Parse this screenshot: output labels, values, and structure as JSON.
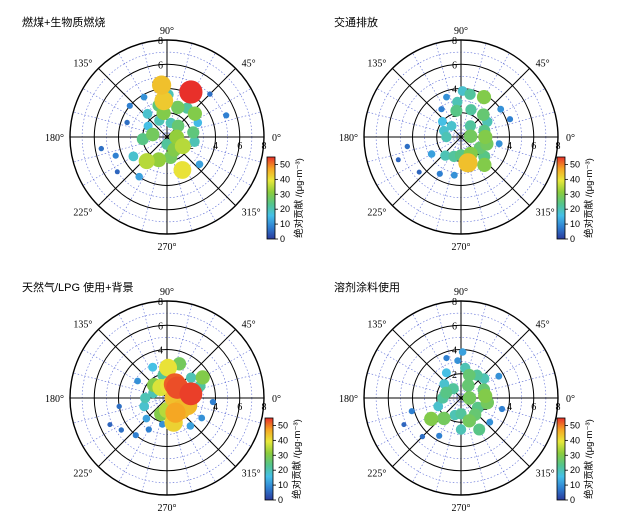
{
  "colorscale": {
    "min": 0,
    "max": 55,
    "ticks": [
      0,
      10,
      20,
      30,
      40,
      50
    ],
    "stops": [
      "#2b3a9c",
      "#2f7fd1",
      "#45c0e8",
      "#55c58a",
      "#8ccc3c",
      "#e8e83a",
      "#f5a623",
      "#e8302a"
    ],
    "label": "绝对贡献 /(μg·m⁻³)"
  },
  "polar": {
    "radial_ticks": [
      "2",
      "4",
      "6",
      "8"
    ],
    "angle_labels": [
      "0°",
      "45°",
      "90°",
      "135°",
      "180°",
      "225°",
      "270°",
      "315°"
    ],
    "r_max": 8
  },
  "chart_data": [
    {
      "type": "scatter",
      "title": "燃煤+生物质燃烧",
      "points": [
        {
          "theta": 62,
          "r": 4.2,
          "v": 55
        },
        {
          "theta": 96,
          "r": 4.3,
          "v": 44
        },
        {
          "theta": 95,
          "r": 3.0,
          "v": 43
        },
        {
          "theta": 98,
          "r": 2.0,
          "v": 30
        },
        {
          "theta": 88,
          "r": 3.5,
          "v": 20
        },
        {
          "theta": 105,
          "r": 2.7,
          "v": 25
        },
        {
          "theta": 70,
          "r": 2.6,
          "v": 28
        },
        {
          "theta": 55,
          "r": 2.9,
          "v": 22
        },
        {
          "theta": 40,
          "r": 3.0,
          "v": 30
        },
        {
          "theta": 25,
          "r": 2.8,
          "v": 15
        },
        {
          "theta": 10,
          "r": 2.2,
          "v": 25
        },
        {
          "theta": 350,
          "r": 2.3,
          "v": 20
        },
        {
          "theta": 330,
          "r": 1.5,
          "v": 35
        },
        {
          "theta": 300,
          "r": 1.2,
          "v": 30
        },
        {
          "theta": 280,
          "r": 1.7,
          "v": 28
        },
        {
          "theta": 250,
          "r": 2.0,
          "v": 32
        },
        {
          "theta": 230,
          "r": 2.6,
          "v": 35
        },
        {
          "theta": 210,
          "r": 3.2,
          "v": 18
        },
        {
          "theta": 200,
          "r": 4.5,
          "v": 8
        },
        {
          "theta": 190,
          "r": 5.5,
          "v": 6
        },
        {
          "theta": 185,
          "r": 2.0,
          "v": 24
        },
        {
          "theta": 170,
          "r": 1.2,
          "v": 28
        },
        {
          "theta": 150,
          "r": 1.8,
          "v": 16
        },
        {
          "theta": 130,
          "r": 2.5,
          "v": 18
        },
        {
          "theta": 140,
          "r": 4.0,
          "v": 8
        },
        {
          "theta": 120,
          "r": 3.8,
          "v": 10
        },
        {
          "theta": 160,
          "r": 3.5,
          "v": 6
        },
        {
          "theta": 20,
          "r": 5.2,
          "v": 8
        },
        {
          "theta": 45,
          "r": 5.0,
          "v": 6
        },
        {
          "theta": 320,
          "r": 3.5,
          "v": 12
        },
        {
          "theta": 295,
          "r": 3.0,
          "v": 40
        },
        {
          "theta": 235,
          "r": 4.0,
          "v": 12
        },
        {
          "theta": 215,
          "r": 5.0,
          "v": 5
        },
        {
          "theta": 75,
          "r": 1.2,
          "v": 20
        },
        {
          "theta": 0,
          "r": 0.8,
          "v": 32
        },
        {
          "theta": 270,
          "r": 0.6,
          "v": 22
        },
        {
          "theta": 45,
          "r": 1.3,
          "v": 26
        },
        {
          "theta": 115,
          "r": 1.5,
          "v": 20
        }
      ]
    },
    {
      "type": "scatter",
      "title": "交通排放",
      "points": [
        {
          "theta": 60,
          "r": 3.8,
          "v": 30
        },
        {
          "theta": 78,
          "r": 3.6,
          "v": 22
        },
        {
          "theta": 88,
          "r": 3.8,
          "v": 18
        },
        {
          "theta": 96,
          "r": 2.9,
          "v": 20
        },
        {
          "theta": 100,
          "r": 2.2,
          "v": 24
        },
        {
          "theta": 70,
          "r": 2.4,
          "v": 22
        },
        {
          "theta": 45,
          "r": 2.6,
          "v": 26
        },
        {
          "theta": 30,
          "r": 2.5,
          "v": 20
        },
        {
          "theta": 15,
          "r": 2.0,
          "v": 24
        },
        {
          "theta": 0,
          "r": 2.0,
          "v": 30
        },
        {
          "theta": 345,
          "r": 2.2,
          "v": 28
        },
        {
          "theta": 330,
          "r": 1.8,
          "v": 26
        },
        {
          "theta": 300,
          "r": 1.6,
          "v": 30
        },
        {
          "theta": 285,
          "r": 2.2,
          "v": 44
        },
        {
          "theta": 270,
          "r": 1.5,
          "v": 24
        },
        {
          "theta": 250,
          "r": 1.7,
          "v": 22
        },
        {
          "theta": 230,
          "r": 2.0,
          "v": 20
        },
        {
          "theta": 210,
          "r": 2.8,
          "v": 12
        },
        {
          "theta": 190,
          "r": 4.5,
          "v": 6
        },
        {
          "theta": 180,
          "r": 1.2,
          "v": 20
        },
        {
          "theta": 160,
          "r": 1.5,
          "v": 18
        },
        {
          "theta": 140,
          "r": 2.0,
          "v": 16
        },
        {
          "theta": 125,
          "r": 2.8,
          "v": 8
        },
        {
          "theta": 110,
          "r": 3.5,
          "v": 10
        },
        {
          "theta": 20,
          "r": 4.3,
          "v": 8
        },
        {
          "theta": 35,
          "r": 4.0,
          "v": 10
        },
        {
          "theta": 310,
          "r": 3.0,
          "v": 30
        },
        {
          "theta": 320,
          "r": 2.5,
          "v": 24
        },
        {
          "theta": 240,
          "r": 3.5,
          "v": 8
        },
        {
          "theta": 220,
          "r": 4.5,
          "v": 5
        },
        {
          "theta": 200,
          "r": 5.5,
          "v": 5
        },
        {
          "theta": 260,
          "r": 3.2,
          "v": 10
        },
        {
          "theta": 50,
          "r": 1.2,
          "v": 22
        },
        {
          "theta": 130,
          "r": 1.2,
          "v": 18
        },
        {
          "theta": 5,
          "r": 0.8,
          "v": 28
        },
        {
          "theta": 350,
          "r": 3.2,
          "v": 10
        }
      ]
    },
    {
      "type": "scatter",
      "title": "天然气/LPG 使用+背景",
      "points": [
        {
          "theta": 10,
          "r": 2.0,
          "v": 54
        },
        {
          "theta": 340,
          "r": 1.8,
          "v": 45
        },
        {
          "theta": 320,
          "r": 1.5,
          "v": 45
        },
        {
          "theta": 300,
          "r": 1.4,
          "v": 47
        },
        {
          "theta": 285,
          "r": 2.1,
          "v": 42
        },
        {
          "theta": 45,
          "r": 1.2,
          "v": 53
        },
        {
          "theta": 60,
          "r": 1.3,
          "v": 52
        },
        {
          "theta": 88,
          "r": 2.5,
          "v": 40
        },
        {
          "theta": 100,
          "r": 1.9,
          "v": 22
        },
        {
          "theta": 135,
          "r": 1.5,
          "v": 30
        },
        {
          "theta": 160,
          "r": 1.2,
          "v": 20
        },
        {
          "theta": 180,
          "r": 1.8,
          "v": 20
        },
        {
          "theta": 200,
          "r": 2.0,
          "v": 18
        },
        {
          "theta": 225,
          "r": 2.4,
          "v": 12
        },
        {
          "theta": 240,
          "r": 3.0,
          "v": 8
        },
        {
          "theta": 260,
          "r": 2.2,
          "v": 10
        },
        {
          "theta": 20,
          "r": 2.9,
          "v": 22
        },
        {
          "theta": 30,
          "r": 3.4,
          "v": 30
        },
        {
          "theta": 40,
          "r": 2.6,
          "v": 20
        },
        {
          "theta": 70,
          "r": 3.0,
          "v": 28
        },
        {
          "theta": 115,
          "r": 2.8,
          "v": 16
        },
        {
          "theta": 150,
          "r": 2.8,
          "v": 10
        },
        {
          "theta": 190,
          "r": 4.0,
          "v": 6
        },
        {
          "theta": 205,
          "r": 5.2,
          "v": 5
        },
        {
          "theta": 215,
          "r": 4.6,
          "v": 6
        },
        {
          "theta": 230,
          "r": 4.0,
          "v": 8
        },
        {
          "theta": 355,
          "r": 3.8,
          "v": 8
        },
        {
          "theta": 330,
          "r": 3.3,
          "v": 10
        },
        {
          "theta": 310,
          "r": 3.0,
          "v": 12
        },
        {
          "theta": 270,
          "r": 1.0,
          "v": 35
        },
        {
          "theta": 0,
          "r": 0.6,
          "v": 44
        },
        {
          "theta": 80,
          "r": 1.0,
          "v": 40
        },
        {
          "theta": 120,
          "r": 1.0,
          "v": 38
        },
        {
          "theta": 250,
          "r": 1.4,
          "v": 30
        }
      ]
    },
    {
      "type": "scatter",
      "title": "溶剂涂料使用",
      "points": [
        {
          "theta": 88,
          "r": 3.8,
          "v": 12
        },
        {
          "theta": 95,
          "r": 3.1,
          "v": 10
        },
        {
          "theta": 82,
          "r": 2.5,
          "v": 20
        },
        {
          "theta": 70,
          "r": 2.0,
          "v": 26
        },
        {
          "theta": 55,
          "r": 2.3,
          "v": 22
        },
        {
          "theta": 40,
          "r": 2.5,
          "v": 20
        },
        {
          "theta": 20,
          "r": 2.0,
          "v": 26
        },
        {
          "theta": 5,
          "r": 2.0,
          "v": 30
        },
        {
          "theta": 350,
          "r": 2.2,
          "v": 28
        },
        {
          "theta": 330,
          "r": 1.6,
          "v": 24
        },
        {
          "theta": 310,
          "r": 1.8,
          "v": 26
        },
        {
          "theta": 290,
          "r": 2.0,
          "v": 28
        },
        {
          "theta": 270,
          "r": 1.3,
          "v": 22
        },
        {
          "theta": 250,
          "r": 1.5,
          "v": 20
        },
        {
          "theta": 230,
          "r": 2.2,
          "v": 28
        },
        {
          "theta": 215,
          "r": 3.0,
          "v": 30
        },
        {
          "theta": 200,
          "r": 2.0,
          "v": 18
        },
        {
          "theta": 180,
          "r": 1.5,
          "v": 22
        },
        {
          "theta": 160,
          "r": 1.3,
          "v": 24
        },
        {
          "theta": 140,
          "r": 1.8,
          "v": 18
        },
        {
          "theta": 120,
          "r": 2.4,
          "v": 16
        },
        {
          "theta": 110,
          "r": 3.5,
          "v": 8
        },
        {
          "theta": 195,
          "r": 4.2,
          "v": 8
        },
        {
          "theta": 205,
          "r": 5.2,
          "v": 5
        },
        {
          "theta": 225,
          "r": 4.5,
          "v": 6
        },
        {
          "theta": 240,
          "r": 3.6,
          "v": 8
        },
        {
          "theta": 30,
          "r": 3.6,
          "v": 10
        },
        {
          "theta": 345,
          "r": 3.5,
          "v": 8
        },
        {
          "theta": 320,
          "r": 3.1,
          "v": 10
        },
        {
          "theta": 300,
          "r": 3.0,
          "v": 24
        },
        {
          "theta": 60,
          "r": 1.2,
          "v": 26
        },
        {
          "theta": 0,
          "r": 0.7,
          "v": 28
        },
        {
          "theta": 130,
          "r": 1.0,
          "v": 22
        },
        {
          "theta": 270,
          "r": 2.6,
          "v": 20
        }
      ]
    }
  ]
}
